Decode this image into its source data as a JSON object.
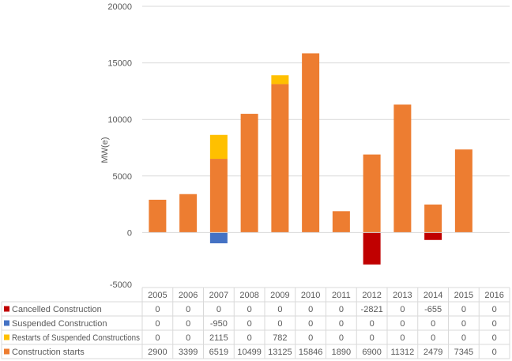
{
  "chart_data": {
    "type": "bar",
    "stacked": true,
    "title": "",
    "xlabel": "",
    "ylabel": "MW(e)",
    "ylim": [
      -5000,
      20000
    ],
    "yticks": [
      -5000,
      0,
      5000,
      10000,
      15000,
      20000
    ],
    "grid": true,
    "legend": "data-table",
    "categories": [
      "2005",
      "2006",
      "2007",
      "2008",
      "2009",
      "2010",
      "2011",
      "2012",
      "2013",
      "2014",
      "2015",
      "2016"
    ],
    "series": [
      {
        "name": "Cancelled Construction",
        "color": "#C00000",
        "values": [
          0,
          0,
          0,
          0,
          0,
          0,
          0,
          -2821,
          0,
          -655,
          0,
          0
        ]
      },
      {
        "name": "Suspended Construction",
        "color": "#4472C4",
        "values": [
          0,
          0,
          -950,
          0,
          0,
          0,
          0,
          0,
          0,
          0,
          0,
          0
        ]
      },
      {
        "name": "Restarts of Suspended Constructions",
        "color": "#FFC000",
        "values": [
          0,
          0,
          2115,
          0,
          782,
          0,
          0,
          0,
          0,
          0,
          0,
          0
        ]
      },
      {
        "name": "Construction starts",
        "color": "#ED7D31",
        "values": [
          2900,
          3399,
          6519,
          10499,
          13125,
          15846,
          1890,
          6900,
          11312,
          2479,
          7345,
          0
        ]
      }
    ]
  }
}
